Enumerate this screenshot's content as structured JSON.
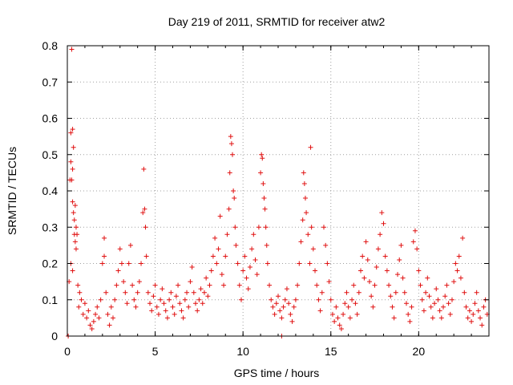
{
  "chart_data": {
    "type": "scatter",
    "title": "Day 219 of 2011, SRMTID for receiver atw2",
    "xlabel": "GPS time / hours",
    "ylabel": "SRMTID / TECUs",
    "xlim": [
      0,
      24
    ],
    "ylim": [
      0,
      0.8
    ],
    "x_ticks": [
      0,
      5,
      10,
      15,
      20
    ],
    "x_tick_labels": [
      "0",
      "5",
      "10",
      "15",
      "20"
    ],
    "y_ticks": [
      0,
      0.1,
      0.2,
      0.3,
      0.4,
      0.5,
      0.6,
      0.7,
      0.8
    ],
    "y_tick_labels": [
      "0",
      "0.1",
      "0.2",
      "0.3",
      "0.4",
      "0.5",
      "0.6",
      "0.7",
      "0.8"
    ],
    "grid": true,
    "marker": "plus",
    "color": "#e01010",
    "series": [
      {
        "name": "SRMTID",
        "points": [
          [
            0.25,
            0.79
          ],
          [
            0.2,
            0.56
          ],
          [
            0.3,
            0.57
          ],
          [
            0.35,
            0.52
          ],
          [
            0.2,
            0.48
          ],
          [
            0.3,
            0.46
          ],
          [
            0.15,
            0.43
          ],
          [
            0.25,
            0.43
          ],
          [
            0.3,
            0.37
          ],
          [
            0.45,
            0.36
          ],
          [
            0.35,
            0.34
          ],
          [
            0.4,
            0.32
          ],
          [
            0.5,
            0.3
          ],
          [
            0.4,
            0.28
          ],
          [
            0.55,
            0.28
          ],
          [
            0.45,
            0.26
          ],
          [
            0.5,
            0.24
          ],
          [
            0.2,
            0.2
          ],
          [
            0.3,
            0.18
          ],
          [
            0.1,
            0.15
          ],
          [
            0.6,
            0.14
          ],
          [
            0.7,
            0.12
          ],
          [
            0.8,
            0.1
          ],
          [
            0.65,
            0.08
          ],
          [
            0.9,
            0.06
          ],
          [
            1.0,
            0.09
          ],
          [
            1.1,
            0.05
          ],
          [
            1.2,
            0.07
          ],
          [
            1.3,
            0.03
          ],
          [
            1.4,
            0.02
          ],
          [
            1.5,
            0.04
          ],
          [
            1.6,
            0.06
          ],
          [
            1.7,
            0.08
          ],
          [
            1.8,
            0.05
          ],
          [
            1.9,
            0.1
          ],
          [
            2.0,
            0.2
          ],
          [
            2.1,
            0.27
          ],
          [
            2.1,
            0.22
          ],
          [
            2.2,
            0.12
          ],
          [
            2.3,
            0.06
          ],
          [
            2.4,
            0.03
          ],
          [
            2.5,
            0.08
          ],
          [
            2.6,
            0.05
          ],
          [
            2.7,
            0.1
          ],
          [
            2.8,
            0.14
          ],
          [
            2.9,
            0.18
          ],
          [
            3.0,
            0.24
          ],
          [
            3.1,
            0.2
          ],
          [
            3.2,
            0.15
          ],
          [
            3.3,
            0.12
          ],
          [
            3.4,
            0.09
          ],
          [
            3.5,
            0.2
          ],
          [
            3.6,
            0.25
          ],
          [
            3.7,
            0.14
          ],
          [
            3.8,
            0.1
          ],
          [
            3.9,
            0.08
          ],
          [
            4.0,
            0.12
          ],
          [
            4.1,
            0.15
          ],
          [
            4.2,
            0.2
          ],
          [
            4.3,
            0.34
          ],
          [
            4.35,
            0.46
          ],
          [
            4.4,
            0.35
          ],
          [
            4.45,
            0.3
          ],
          [
            4.5,
            0.22
          ],
          [
            4.6,
            0.12
          ],
          [
            4.7,
            0.09
          ],
          [
            4.8,
            0.07
          ],
          [
            4.9,
            0.11
          ],
          [
            5.0,
            0.14
          ],
          [
            5.1,
            0.08
          ],
          [
            5.2,
            0.06
          ],
          [
            5.3,
            0.1
          ],
          [
            5.4,
            0.13
          ],
          [
            5.5,
            0.09
          ],
          [
            5.6,
            0.07
          ],
          [
            5.7,
            0.05
          ],
          [
            5.8,
            0.1
          ],
          [
            5.9,
            0.12
          ],
          [
            6.0,
            0.08
          ],
          [
            6.1,
            0.06
          ],
          [
            6.2,
            0.11
          ],
          [
            6.3,
            0.14
          ],
          [
            6.4,
            0.09
          ],
          [
            6.5,
            0.07
          ],
          [
            6.6,
            0.05
          ],
          [
            6.7,
            0.1
          ],
          [
            6.8,
            0.12
          ],
          [
            6.9,
            0.08
          ],
          [
            7.0,
            0.15
          ],
          [
            7.1,
            0.19
          ],
          [
            7.2,
            0.12
          ],
          [
            7.3,
            0.09
          ],
          [
            7.4,
            0.07
          ],
          [
            7.5,
            0.1
          ],
          [
            7.6,
            0.13
          ],
          [
            7.7,
            0.09
          ],
          [
            7.8,
            0.12
          ],
          [
            7.9,
            0.16
          ],
          [
            8.0,
            0.11
          ],
          [
            8.1,
            0.14
          ],
          [
            8.2,
            0.18
          ],
          [
            8.3,
            0.22
          ],
          [
            8.4,
            0.27
          ],
          [
            8.5,
            0.2
          ],
          [
            8.6,
            0.24
          ],
          [
            8.7,
            0.33
          ],
          [
            8.8,
            0.17
          ],
          [
            8.9,
            0.14
          ],
          [
            9.0,
            0.22
          ],
          [
            9.1,
            0.28
          ],
          [
            9.2,
            0.35
          ],
          [
            9.25,
            0.45
          ],
          [
            9.3,
            0.55
          ],
          [
            9.35,
            0.53
          ],
          [
            9.4,
            0.5
          ],
          [
            9.45,
            0.4
          ],
          [
            9.5,
            0.38
          ],
          [
            9.55,
            0.3
          ],
          [
            9.6,
            0.25
          ],
          [
            9.7,
            0.2
          ],
          [
            9.8,
            0.14
          ],
          [
            9.9,
            0.1
          ],
          [
            10.0,
            0.18
          ],
          [
            10.1,
            0.22
          ],
          [
            10.2,
            0.16
          ],
          [
            10.3,
            0.13
          ],
          [
            10.4,
            0.19
          ],
          [
            10.5,
            0.24
          ],
          [
            10.6,
            0.28
          ],
          [
            10.7,
            0.21
          ],
          [
            10.8,
            0.17
          ],
          [
            10.9,
            0.3
          ],
          [
            11.0,
            0.45
          ],
          [
            11.05,
            0.5
          ],
          [
            11.1,
            0.49
          ],
          [
            11.15,
            0.42
          ],
          [
            11.2,
            0.38
          ],
          [
            11.25,
            0.35
          ],
          [
            11.3,
            0.3
          ],
          [
            11.35,
            0.25
          ],
          [
            11.4,
            0.2
          ],
          [
            11.5,
            0.14
          ],
          [
            11.6,
            0.1
          ],
          [
            11.7,
            0.08
          ],
          [
            11.8,
            0.06
          ],
          [
            11.9,
            0.09
          ],
          [
            12.0,
            0.11
          ],
          [
            12.1,
            0.07
          ],
          [
            12.2,
            0.05
          ],
          [
            12.3,
            0.08
          ],
          [
            12.4,
            0.1
          ],
          [
            12.5,
            0.13
          ],
          [
            12.6,
            0.09
          ],
          [
            12.7,
            0.06
          ],
          [
            12.8,
            0.04
          ],
          [
            12.9,
            0.08
          ],
          [
            13.0,
            0.1
          ],
          [
            13.1,
            0.14
          ],
          [
            13.2,
            0.2
          ],
          [
            13.3,
            0.26
          ],
          [
            13.4,
            0.32
          ],
          [
            13.45,
            0.45
          ],
          [
            13.5,
            0.42
          ],
          [
            13.55,
            0.38
          ],
          [
            13.6,
            0.34
          ],
          [
            13.7,
            0.28
          ],
          [
            13.8,
            0.2
          ],
          [
            13.85,
            0.52
          ],
          [
            13.9,
            0.3
          ],
          [
            14.0,
            0.24
          ],
          [
            14.1,
            0.18
          ],
          [
            14.2,
            0.14
          ],
          [
            14.3,
            0.1
          ],
          [
            14.4,
            0.07
          ],
          [
            14.5,
            0.12
          ],
          [
            14.6,
            0.3
          ],
          [
            14.7,
            0.25
          ],
          [
            14.8,
            0.2
          ],
          [
            14.9,
            0.15
          ],
          [
            15.0,
            0.1
          ],
          [
            15.1,
            0.06
          ],
          [
            15.2,
            0.04
          ],
          [
            15.3,
            0.08
          ],
          [
            15.4,
            0.05
          ],
          [
            15.5,
            0.03
          ],
          [
            15.6,
            0.02
          ],
          [
            15.7,
            0.06
          ],
          [
            15.8,
            0.09
          ],
          [
            15.9,
            0.12
          ],
          [
            16.0,
            0.08
          ],
          [
            16.1,
            0.05
          ],
          [
            16.2,
            0.1
          ],
          [
            16.3,
            0.14
          ],
          [
            16.4,
            0.09
          ],
          [
            16.5,
            0.06
          ],
          [
            16.6,
            0.12
          ],
          [
            16.7,
            0.18
          ],
          [
            16.8,
            0.22
          ],
          [
            16.9,
            0.16
          ],
          [
            17.0,
            0.26
          ],
          [
            17.1,
            0.21
          ],
          [
            17.2,
            0.15
          ],
          [
            17.3,
            0.11
          ],
          [
            17.4,
            0.08
          ],
          [
            17.5,
            0.14
          ],
          [
            17.6,
            0.19
          ],
          [
            17.7,
            0.24
          ],
          [
            17.8,
            0.28
          ],
          [
            17.9,
            0.34
          ],
          [
            18.0,
            0.31
          ],
          [
            18.1,
            0.22
          ],
          [
            18.2,
            0.18
          ],
          [
            18.3,
            0.14
          ],
          [
            18.4,
            0.11
          ],
          [
            18.5,
            0.08
          ],
          [
            18.6,
            0.05
          ],
          [
            18.7,
            0.12
          ],
          [
            18.8,
            0.17
          ],
          [
            18.9,
            0.21
          ],
          [
            19.0,
            0.25
          ],
          [
            19.1,
            0.16
          ],
          [
            19.2,
            0.12
          ],
          [
            19.3,
            0.09
          ],
          [
            19.4,
            0.06
          ],
          [
            19.5,
            0.04
          ],
          [
            19.6,
            0.08
          ],
          [
            19.7,
            0.26
          ],
          [
            19.8,
            0.29
          ],
          [
            19.9,
            0.24
          ],
          [
            20.0,
            0.18
          ],
          [
            20.1,
            0.14
          ],
          [
            20.2,
            0.1
          ],
          [
            20.3,
            0.07
          ],
          [
            20.4,
            0.12
          ],
          [
            20.5,
            0.16
          ],
          [
            20.6,
            0.11
          ],
          [
            20.7,
            0.08
          ],
          [
            20.8,
            0.05
          ],
          [
            20.9,
            0.09
          ],
          [
            21.0,
            0.13
          ],
          [
            21.1,
            0.1
          ],
          [
            21.2,
            0.07
          ],
          [
            21.3,
            0.05
          ],
          [
            21.4,
            0.08
          ],
          [
            21.5,
            0.11
          ],
          [
            21.6,
            0.14
          ],
          [
            21.7,
            0.09
          ],
          [
            21.8,
            0.06
          ],
          [
            21.9,
            0.1
          ],
          [
            22.0,
            0.15
          ],
          [
            22.1,
            0.2
          ],
          [
            22.2,
            0.18
          ],
          [
            22.3,
            0.22
          ],
          [
            22.4,
            0.16
          ],
          [
            22.5,
            0.27
          ],
          [
            22.6,
            0.12
          ],
          [
            22.7,
            0.08
          ],
          [
            22.8,
            0.05
          ],
          [
            22.9,
            0.07
          ],
          [
            23.0,
            0.04
          ],
          [
            23.1,
            0.06
          ],
          [
            23.2,
            0.09
          ],
          [
            23.3,
            0.12
          ],
          [
            23.4,
            0.07
          ],
          [
            23.5,
            0.05
          ],
          [
            23.6,
            0.03
          ],
          [
            23.7,
            0.08
          ],
          [
            23.8,
            0.1
          ],
          [
            23.9,
            0.06
          ],
          [
            0.05,
            0.0
          ],
          [
            12.2,
            0.0
          ]
        ]
      }
    ]
  }
}
